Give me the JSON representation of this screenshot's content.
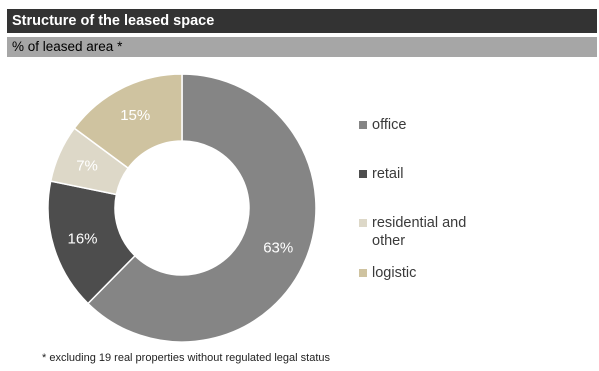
{
  "header": {
    "title": "Structure of the leased space",
    "subtitle": "% of leased area *"
  },
  "footnote": "* excluding 19 real properties without regulated legal status",
  "chart_data": {
    "type": "pie",
    "variant": "donut",
    "title": "Structure of the leased space",
    "subtitle": "% of leased area *",
    "categories": [
      "office",
      "retail",
      "residential and other",
      "logistic"
    ],
    "values": [
      63,
      16,
      7,
      15
    ],
    "labels": [
      "63%",
      "16%",
      "7%",
      "15%"
    ],
    "colors": [
      "#858585",
      "#4d4d4d",
      "#ddd8c8",
      "#cfc3a0"
    ],
    "label_colors": [
      "#ffffff",
      "#ffffff",
      "#ffffff",
      "#ffffff"
    ],
    "start_angle": "12 o'clock",
    "direction": "clockwise",
    "legend_position": "right",
    "legend_order": [
      0,
      1,
      2,
      3
    ]
  }
}
